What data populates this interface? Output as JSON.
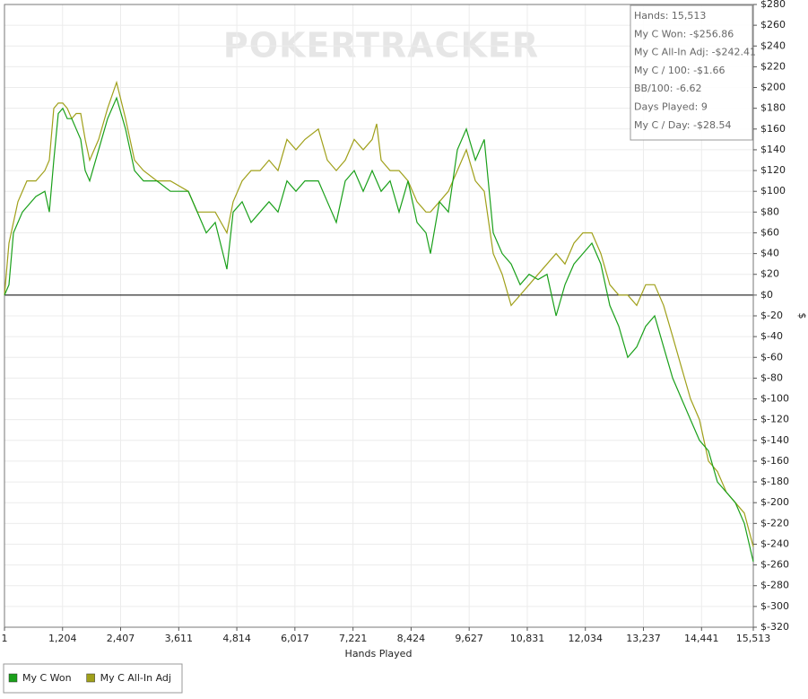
{
  "chart_data": {
    "type": "line",
    "watermark": "POKERTRACKER",
    "xlabel": "Hands Played",
    "ylabel": "$",
    "stats": [
      "Hands: 15,513",
      "My C Won: -$256.86",
      "My C All-In Adj: -$242.41",
      "My C / 100: -$1.66",
      "BB/100: -6.62",
      "Days Played: 9",
      "My C / Day: -$28.54"
    ],
    "x": [
      1,
      94,
      187,
      279,
      372,
      465,
      651,
      837,
      930,
      1022,
      1115,
      1208,
      1301,
      1394,
      1487,
      1580,
      1673,
      1766,
      1951,
      2137,
      2323,
      2509,
      2695,
      2880,
      3159,
      3438,
      3810,
      3995,
      4181,
      4367,
      4608,
      4738,
      4924,
      5110,
      5296,
      5481,
      5667,
      5853,
      6039,
      6225,
      6503,
      6689,
      6875,
      7061,
      7246,
      7432,
      7618,
      7711,
      7804,
      7990,
      8175,
      8361,
      8547,
      8733,
      8826,
      9011,
      9197,
      9383,
      9569,
      9755,
      9940,
      10126,
      10312,
      10498,
      10683,
      10869,
      11055,
      11241,
      11427,
      11612,
      11798,
      11984,
      12170,
      12355,
      12541,
      12727,
      12913,
      13098,
      13284,
      13470,
      13656,
      13842,
      14027,
      14213,
      14399,
      14585,
      14770,
      14956,
      15142,
      15328,
      15513
    ],
    "series": [
      {
        "name": "My C Won",
        "color": "#1aa01a",
        "values": [
          0,
          10,
          60,
          70,
          80,
          85,
          95,
          100,
          80,
          130,
          175,
          180,
          170,
          170,
          160,
          150,
          120,
          110,
          140,
          170,
          190,
          160,
          120,
          110,
          110,
          100,
          100,
          80,
          60,
          70,
          25,
          80,
          90,
          70,
          80,
          90,
          80,
          110,
          100,
          110,
          110,
          90,
          70,
          110,
          120,
          100,
          120,
          110,
          100,
          110,
          80,
          110,
          70,
          60,
          40,
          90,
          80,
          140,
          160,
          130,
          150,
          60,
          40,
          30,
          10,
          20,
          15,
          20,
          -20,
          10,
          30,
          40,
          50,
          30,
          -10,
          -30,
          -60,
          -50,
          -30,
          -20,
          -50,
          -80,
          -100,
          -120,
          -140,
          -150,
          -180,
          -190,
          -200,
          -220,
          -256.86
        ]
      },
      {
        "name": "My C All-In Adj",
        "color": "#a0a01a",
        "values": [
          0,
          50,
          70,
          90,
          100,
          110,
          110,
          120,
          130,
          180,
          185,
          185,
          180,
          170,
          175,
          175,
          150,
          130,
          150,
          180,
          205,
          170,
          130,
          120,
          110,
          110,
          100,
          80,
          80,
          80,
          60,
          90,
          110,
          120,
          120,
          130,
          120,
          150,
          140,
          150,
          160,
          130,
          120,
          130,
          150,
          140,
          150,
          165,
          130,
          120,
          120,
          110,
          90,
          80,
          80,
          90,
          100,
          120,
          140,
          110,
          100,
          40,
          20,
          -10,
          0,
          10,
          20,
          30,
          40,
          30,
          50,
          60,
          60,
          40,
          10,
          0,
          0,
          -10,
          10,
          10,
          -10,
          -40,
          -70,
          -100,
          -120,
          -160,
          -170,
          -190,
          -200,
          -210,
          -242.41
        ]
      }
    ],
    "xlim": [
      1,
      15513
    ],
    "xticks": [
      1,
      {
        "value": 1204,
        "label": "1,204"
      },
      {
        "value": 2407,
        "label": "2,407"
      },
      {
        "value": 3611,
        "label": "3,611"
      },
      {
        "value": 4814,
        "label": "4,814"
      },
      {
        "value": 6017,
        "label": "6,017"
      },
      {
        "value": 7221,
        "label": "7,221"
      },
      {
        "value": 8424,
        "label": "8,424"
      },
      {
        "value": 9627,
        "label": "9,627"
      },
      {
        "value": 10831,
        "label": "10,831"
      },
      {
        "value": 12034,
        "label": "12,034"
      },
      {
        "value": 13237,
        "label": "13,237"
      },
      {
        "value": 14441,
        "label": "14,441"
      },
      {
        "value": 15513,
        "label": "15,513"
      }
    ],
    "ylim": [
      -320,
      280
    ],
    "yticks": [
      {
        "value": 280,
        "label": "$280"
      },
      {
        "value": 260,
        "label": "$260"
      },
      {
        "value": 240,
        "label": "$240"
      },
      {
        "value": 220,
        "label": "$220"
      },
      {
        "value": 200,
        "label": "$200"
      },
      {
        "value": 180,
        "label": "$180"
      },
      {
        "value": 160,
        "label": "$160"
      },
      {
        "value": 140,
        "label": "$140"
      },
      {
        "value": 120,
        "label": "$120"
      },
      {
        "value": 100,
        "label": "$100"
      },
      {
        "value": 80,
        "label": "$80"
      },
      {
        "value": 60,
        "label": "$60"
      },
      {
        "value": 40,
        "label": "$40"
      },
      {
        "value": 20,
        "label": "$20"
      },
      {
        "value": 0,
        "label": "$0"
      },
      {
        "value": -20,
        "label": "$-20"
      },
      {
        "value": -40,
        "label": "$-40"
      },
      {
        "value": -60,
        "label": "$-60"
      },
      {
        "value": -80,
        "label": "$-80"
      },
      {
        "value": -100,
        "label": "$-100"
      },
      {
        "value": -120,
        "label": "$-120"
      },
      {
        "value": -140,
        "label": "$-140"
      },
      {
        "value": -160,
        "label": "$-160"
      },
      {
        "value": -180,
        "label": "$-180"
      },
      {
        "value": -200,
        "label": "$-200"
      },
      {
        "value": -220,
        "label": "$-220"
      },
      {
        "value": -240,
        "label": "$-240"
      },
      {
        "value": -260,
        "label": "$-260"
      },
      {
        "value": -280,
        "label": "$-280"
      },
      {
        "value": -300,
        "label": "$-300"
      },
      {
        "value": -320,
        "label": "$-320"
      }
    ],
    "grid": true
  }
}
